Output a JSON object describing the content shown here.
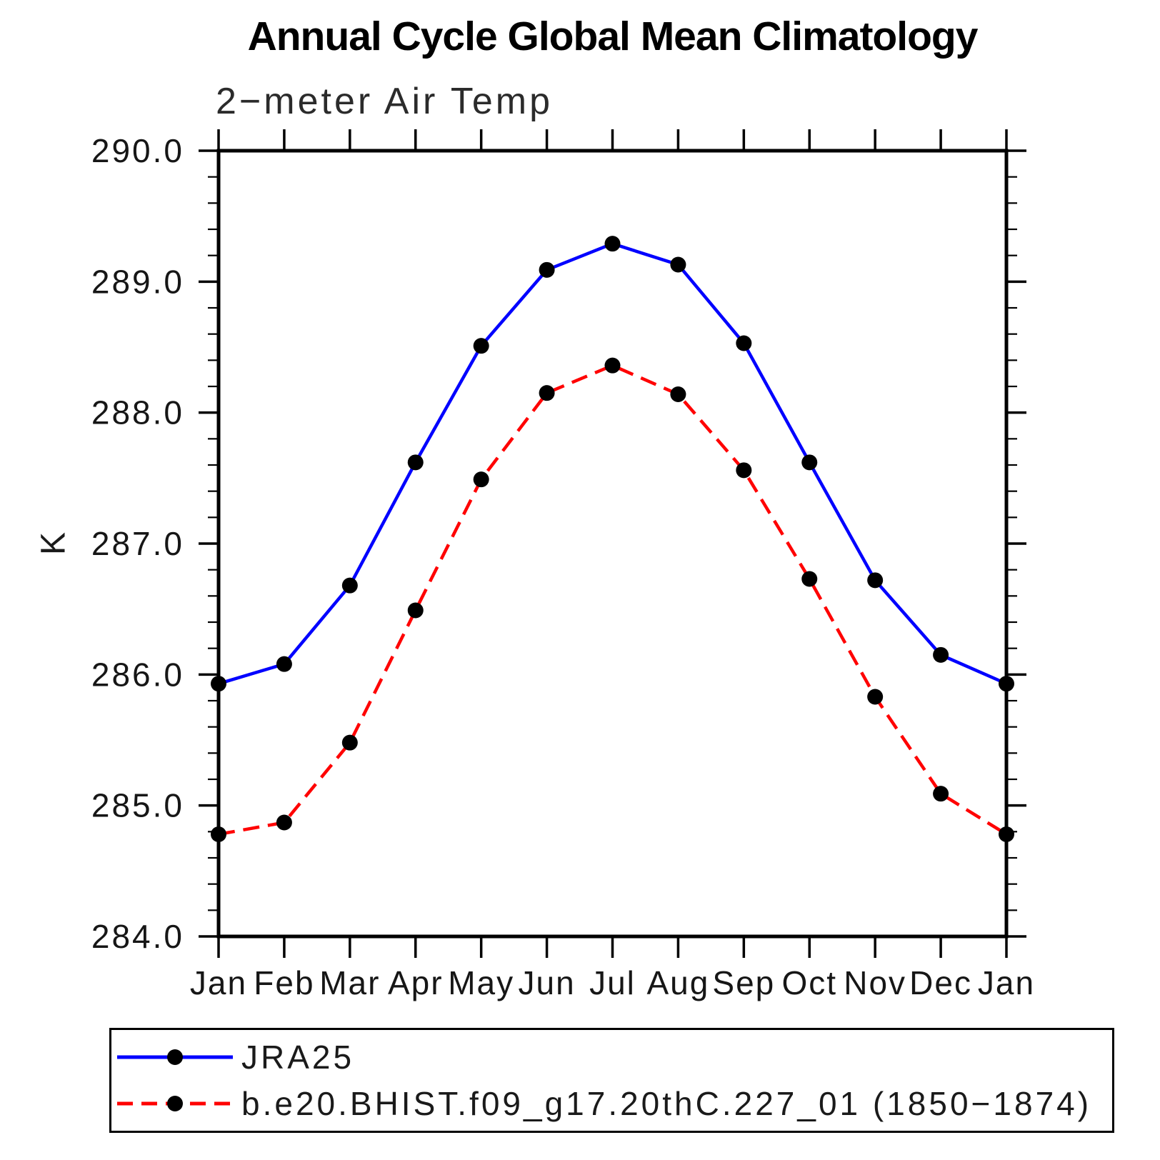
{
  "title": "Annual Cycle Global Mean Climatology",
  "subtitle": "2−meter Air Temp",
  "chart_data": {
    "type": "line",
    "x": [
      "Jan",
      "Feb",
      "Mar",
      "Apr",
      "May",
      "Jun",
      "Jul",
      "Aug",
      "Sep",
      "Oct",
      "Nov",
      "Dec",
      "Jan"
    ],
    "ylabel": "K",
    "ylim": [
      284.0,
      290.0
    ],
    "ytick_major": 1.0,
    "ytick_minor": 0.2,
    "ytick_labels": [
      "284.0",
      "285.0",
      "286.0",
      "287.0",
      "288.0",
      "289.0",
      "290.0"
    ],
    "grid": false,
    "legend_position": "bottom-left-box",
    "frame_color": "#000000",
    "marker": "filled-circle",
    "marker_color": "#000000",
    "series": [
      {
        "name": "JRA25",
        "color": "#0000ff",
        "line_style": "solid",
        "values": [
          285.93,
          286.08,
          286.68,
          287.62,
          288.51,
          289.09,
          289.29,
          289.13,
          288.53,
          287.62,
          286.72,
          286.15,
          285.93
        ]
      },
      {
        "name": "b.e20.BHIST.f09_g17.20thC.227_01 (1850−1874)",
        "color": "#ff0000",
        "line_style": "dashed",
        "values": [
          284.78,
          284.87,
          285.48,
          286.49,
          287.49,
          288.15,
          288.36,
          288.14,
          287.56,
          286.73,
          285.83,
          285.09,
          284.78
        ]
      }
    ]
  }
}
